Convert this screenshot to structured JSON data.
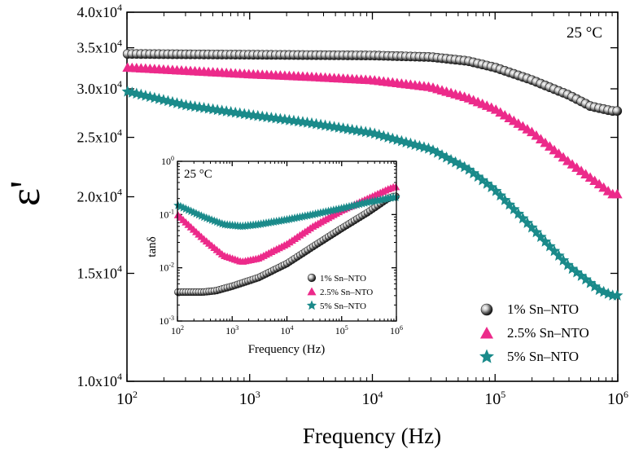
{
  "chart_data": [
    {
      "type": "scatter",
      "title": "",
      "xlabel": "Frequency (Hz)",
      "ylabel": "ε'",
      "xscale": "log",
      "yscale": "log",
      "xlim": [
        100,
        1000000
      ],
      "ylim": [
        10000,
        40000
      ],
      "annotation": "25 °C",
      "legend_position": "bottom-right",
      "x_ticks": [
        {
          "base": "10",
          "exp": "2",
          "value": 100
        },
        {
          "base": "10",
          "exp": "3",
          "value": 1000
        },
        {
          "base": "10",
          "exp": "4",
          "value": 10000
        },
        {
          "base": "10",
          "exp": "5",
          "value": 100000
        },
        {
          "base": "10",
          "exp": "6",
          "value": 1000000
        }
      ],
      "y_ticks": [
        {
          "mant": "1.0x10",
          "exp": "4",
          "value": 10000
        },
        {
          "mant": "1.5x10",
          "exp": "4",
          "value": 15000
        },
        {
          "mant": "2.0x10",
          "exp": "4",
          "value": 20000
        },
        {
          "mant": "2.5x10",
          "exp": "4",
          "value": 25000
        },
        {
          "mant": "3.0x10",
          "exp": "4",
          "value": 30000
        },
        {
          "mant": "3.5x10",
          "exp": "4",
          "value": 35000
        },
        {
          "mant": "4.0x10",
          "exp": "4",
          "value": 40000
        }
      ],
      "series": [
        {
          "name": "1% Sn–NTO",
          "marker": "sphere",
          "color": "#111111",
          "points": [
            [
              100,
              34200
            ],
            [
              1000,
              34100
            ],
            [
              10000,
              34000
            ],
            [
              30000,
              33800
            ],
            [
              60000,
              33300
            ],
            [
              100000,
              32500
            ],
            [
              200000,
              31000
            ],
            [
              400000,
              29300
            ],
            [
              600000,
              28100
            ],
            [
              900000,
              27600
            ]
          ]
        },
        {
          "name": "2.5% Sn–NTO",
          "marker": "triangle",
          "color": "#ec2a8a",
          "points": [
            [
              100,
              32500
            ],
            [
              1000,
              31700
            ],
            [
              3000,
              31400
            ],
            [
              10000,
              31000
            ],
            [
              30000,
              30200
            ],
            [
              60000,
              29000
            ],
            [
              100000,
              27800
            ],
            [
              200000,
              25500
            ],
            [
              400000,
              22800
            ],
            [
              700000,
              21000
            ],
            [
              900000,
              20200
            ]
          ]
        },
        {
          "name": "5% Sn–NTO",
          "marker": "star",
          "color": "#1a8a8a",
          "points": [
            [
              100,
              29700
            ],
            [
              300,
              28200
            ],
            [
              1000,
              27200
            ],
            [
              3000,
              26400
            ],
            [
              10000,
              25400
            ],
            [
              30000,
              23900
            ],
            [
              60000,
              22200
            ],
            [
              100000,
              20500
            ],
            [
              200000,
              17800
            ],
            [
              400000,
              15400
            ],
            [
              700000,
              14100
            ],
            [
              900000,
              13800
            ]
          ]
        }
      ]
    },
    {
      "type": "scatter",
      "title": "",
      "xlabel": "Frequency (Hz)",
      "ylabel": "tanδ",
      "xscale": "log",
      "yscale": "log",
      "xlim": [
        100,
        1000000
      ],
      "ylim": [
        0.001,
        1
      ],
      "annotation": "25 °C",
      "legend_position": "bottom-right",
      "x_ticks": [
        {
          "base": "10",
          "exp": "2",
          "value": 100
        },
        {
          "base": "10",
          "exp": "3",
          "value": 1000
        },
        {
          "base": "10",
          "exp": "4",
          "value": 10000
        },
        {
          "base": "10",
          "exp": "5",
          "value": 100000
        },
        {
          "base": "10",
          "exp": "6",
          "value": 1000000
        }
      ],
      "y_ticks": [
        {
          "base": "10",
          "exp": "-3",
          "value": 0.001
        },
        {
          "base": "10",
          "exp": "-2",
          "value": 0.01
        },
        {
          "base": "10",
          "exp": "-1",
          "value": 0.1
        },
        {
          "base": "10",
          "exp": "0",
          "value": 1
        }
      ],
      "series": [
        {
          "name": "1% Sn–NTO",
          "marker": "sphere",
          "color": "#111111",
          "points": [
            [
              100,
              0.0035
            ],
            [
              300,
              0.0035
            ],
            [
              500,
              0.0037
            ],
            [
              1000,
              0.0045
            ],
            [
              3000,
              0.0065
            ],
            [
              10000,
              0.012
            ],
            [
              30000,
              0.025
            ],
            [
              100000,
              0.055
            ],
            [
              300000,
              0.11
            ],
            [
              700000,
              0.2
            ],
            [
              900000,
              0.22
            ]
          ]
        },
        {
          "name": "2.5% Sn–NTO",
          "marker": "triangle",
          "color": "#ec2a8a",
          "points": [
            [
              100,
              0.1
            ],
            [
              300,
              0.035
            ],
            [
              700,
              0.017
            ],
            [
              1500,
              0.013
            ],
            [
              3000,
              0.015
            ],
            [
              10000,
              0.028
            ],
            [
              30000,
              0.06
            ],
            [
              100000,
              0.12
            ],
            [
              300000,
              0.2
            ],
            [
              700000,
              0.3
            ],
            [
              900000,
              0.33
            ]
          ]
        },
        {
          "name": "5% Sn–NTO",
          "marker": "star",
          "color": "#1a8a8a",
          "points": [
            [
              100,
              0.15
            ],
            [
              300,
              0.09
            ],
            [
              700,
              0.065
            ],
            [
              1500,
              0.06
            ],
            [
              3000,
              0.065
            ],
            [
              10000,
              0.08
            ],
            [
              30000,
              0.1
            ],
            [
              100000,
              0.13
            ],
            [
              300000,
              0.17
            ],
            [
              700000,
              0.2
            ],
            [
              900000,
              0.21
            ]
          ]
        }
      ]
    }
  ]
}
